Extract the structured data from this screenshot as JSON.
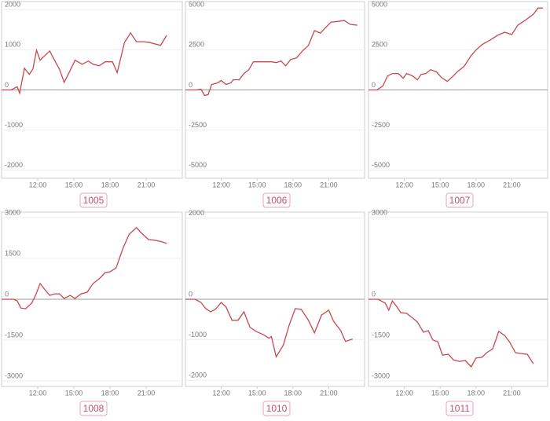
{
  "chart_data": [
    {
      "type": "line",
      "title": "1005",
      "color": "#c9474f",
      "grid": true,
      "xlim": [
        9,
        24
      ],
      "xticks": [
        {
          "value": 12,
          "label": "12:00"
        },
        {
          "value": 15,
          "label": "15:00"
        },
        {
          "value": 18,
          "label": "18:00"
        },
        {
          "value": 21,
          "label": "21:00"
        }
      ],
      "ylim": [
        -2200,
        2200
      ],
      "yticks": [
        2000,
        1000,
        0,
        -1000,
        -2000
      ],
      "x": [
        9,
        9.8,
        10.3,
        10.5,
        10.9,
        11.3,
        11.6,
        11.9,
        12.2,
        12.5,
        13,
        13.5,
        13.8,
        14.2,
        14.7,
        15.1,
        15.7,
        16.2,
        16.6,
        17.1,
        17.6,
        18.2,
        18.6,
        19.2,
        19.7,
        20.2,
        20.8,
        21.3,
        22.2,
        22.7
      ],
      "values": [
        0,
        0,
        80,
        -80,
        540,
        390,
        520,
        990,
        740,
        830,
        970,
        680,
        520,
        190,
        490,
        740,
        640,
        720,
        640,
        600,
        700,
        700,
        430,
        1180,
        1420,
        1200,
        1200,
        1180,
        1110,
        1360
      ]
    },
    {
      "type": "line",
      "title": "1006",
      "color": "#c9474f",
      "grid": true,
      "xlim": [
        9,
        24
      ],
      "xticks": [
        {
          "value": 12,
          "label": "12:00"
        },
        {
          "value": 15,
          "label": "15:00"
        },
        {
          "value": 18,
          "label": "18:00"
        },
        {
          "value": 21,
          "label": "21:00"
        }
      ],
      "ylim": [
        -5500,
        5500
      ],
      "yticks": [
        5000,
        2500,
        0,
        -2500,
        -5000
      ],
      "x": [
        9,
        9.9,
        10.3,
        10.6,
        10.9,
        11.2,
        11.7,
        12,
        12.4,
        12.8,
        13,
        13.5,
        13.9,
        14.3,
        14.7,
        15.4,
        16.2,
        16.6,
        17,
        17.4,
        17.8,
        18.3,
        18.8,
        19.3,
        19.8,
        20.3,
        20.8,
        21.2,
        21.8,
        22.3,
        22.8,
        23.4
      ],
      "values": [
        0,
        0,
        50,
        -340,
        -290,
        340,
        440,
        580,
        340,
        440,
        630,
        630,
        1020,
        1260,
        1750,
        1750,
        1750,
        1700,
        1800,
        1500,
        1890,
        1990,
        2430,
        2770,
        3690,
        3540,
        3930,
        4220,
        4270,
        4320,
        4080,
        4030
      ]
    },
    {
      "type": "line",
      "title": "1007",
      "color": "#c9474f",
      "grid": true,
      "xlim": [
        9,
        24
      ],
      "xticks": [
        {
          "value": 12,
          "label": "12:00"
        },
        {
          "value": 15,
          "label": "15:00"
        },
        {
          "value": 18,
          "label": "18:00"
        },
        {
          "value": 21,
          "label": "21:00"
        }
      ],
      "ylim": [
        -5500,
        5500
      ],
      "yticks": [
        5000,
        2500,
        0,
        -2500,
        -5000
      ],
      "x": [
        9,
        9.7,
        10.2,
        10.6,
        11,
        11.5,
        11.9,
        12.2,
        12.7,
        13.1,
        13.4,
        13.8,
        14.2,
        14.7,
        15.1,
        15.6,
        16.1,
        16.5,
        17,
        17.6,
        18,
        18.5,
        19.2,
        19.8,
        20.4,
        21,
        21.5,
        22.1,
        22.8,
        23.2,
        23.6
      ],
      "values": [
        0,
        0,
        240,
        870,
        1020,
        1020,
        730,
        1020,
        870,
        630,
        970,
        1020,
        1260,
        1120,
        780,
        530,
        870,
        1170,
        1460,
        2140,
        2480,
        2820,
        3110,
        3400,
        3590,
        3450,
        4030,
        4320,
        4710,
        5100,
        5100
      ]
    },
    {
      "type": "line",
      "title": "1008",
      "color": "#c9474f",
      "grid": true,
      "xlim": [
        9,
        24
      ],
      "xticks": [
        {
          "value": 12,
          "label": "12:00"
        },
        {
          "value": 15,
          "label": "15:00"
        },
        {
          "value": 18,
          "label": "18:00"
        },
        {
          "value": 21,
          "label": "21:00"
        }
      ],
      "ylim": [
        -3200,
        3200
      ],
      "yticks": [
        3000,
        1500,
        0,
        -1500,
        -3000
      ],
      "x": [
        9,
        10,
        10.3,
        10.6,
        11,
        11.5,
        11.8,
        12.2,
        12.6,
        13,
        13.4,
        13.8,
        14.2,
        14.7,
        15.1,
        15.6,
        16.1,
        16.6,
        17.1,
        17.6,
        18,
        18.5,
        19.1,
        19.6,
        20.2,
        20.7,
        21.2,
        21.8,
        22.3,
        22.7
      ],
      "values": [
        0,
        0,
        -60,
        -320,
        -350,
        -140,
        120,
        580,
        350,
        140,
        200,
        200,
        30,
        140,
        30,
        200,
        260,
        580,
        750,
        980,
        1010,
        1150,
        1900,
        2390,
        2630,
        2390,
        2190,
        2160,
        2110,
        2050
      ]
    },
    {
      "type": "line",
      "title": "1010",
      "color": "#c9474f",
      "grid": true,
      "xlim": [
        9,
        24
      ],
      "xticks": [
        {
          "value": 12,
          "label": "12:00"
        },
        {
          "value": 15,
          "label": "15:00"
        },
        {
          "value": 18,
          "label": "18:00"
        },
        {
          "value": 21,
          "label": "21:00"
        }
      ],
      "ylim": [
        -2150,
        2150
      ],
      "yticks": [
        2000,
        0,
        -1000,
        -2000
      ],
      "x": [
        9,
        9.8,
        10.3,
        10.7,
        11.1,
        11.5,
        12,
        12.4,
        12.9,
        13.4,
        13.9,
        14.4,
        14.9,
        15.5,
        16,
        16.2,
        16.6,
        17.2,
        17.7,
        18.2,
        18.7,
        19.3,
        19.8,
        20.4,
        21,
        21.4,
        22,
        22.4,
        23
      ],
      "values": [
        0,
        0,
        -80,
        -230,
        -310,
        -250,
        -80,
        -190,
        -520,
        -520,
        -310,
        -690,
        -790,
        -870,
        -960,
        -920,
        -1420,
        -1130,
        -630,
        -230,
        -250,
        -520,
        -830,
        -390,
        -270,
        -540,
        -770,
        -1040,
        -980
      ]
    },
    {
      "type": "line",
      "title": "1011",
      "color": "#c9474f",
      "grid": true,
      "xlim": [
        9,
        24
      ],
      "xticks": [
        {
          "value": 12,
          "label": "12:00"
        },
        {
          "value": 15,
          "label": "15:00"
        },
        {
          "value": 18,
          "label": "18:00"
        },
        {
          "value": 21,
          "label": "21:00"
        }
      ],
      "ylim": [
        -3200,
        3200
      ],
      "yticks": [
        3000,
        0,
        -1500,
        -3000
      ],
      "x": [
        9,
        9.8,
        10.4,
        10.7,
        11,
        11.4,
        11.7,
        12.2,
        12.7,
        13.1,
        13.6,
        14,
        14.4,
        14.8,
        15.2,
        15.7,
        16.1,
        16.6,
        17.1,
        17.6,
        18,
        18.5,
        18.9,
        19.4,
        19.9,
        20.4,
        20.8,
        21.3,
        21.7,
        22.3,
        22.8
      ],
      "values": [
        0,
        0,
        -140,
        -400,
        -60,
        -290,
        -490,
        -520,
        -690,
        -840,
        -1210,
        -1150,
        -1500,
        -1560,
        -2050,
        -2020,
        -2220,
        -2280,
        -2250,
        -2480,
        -2160,
        -2130,
        -1960,
        -1820,
        -1180,
        -1330,
        -1560,
        -1960,
        -1990,
        -2020,
        -2370
      ]
    }
  ]
}
